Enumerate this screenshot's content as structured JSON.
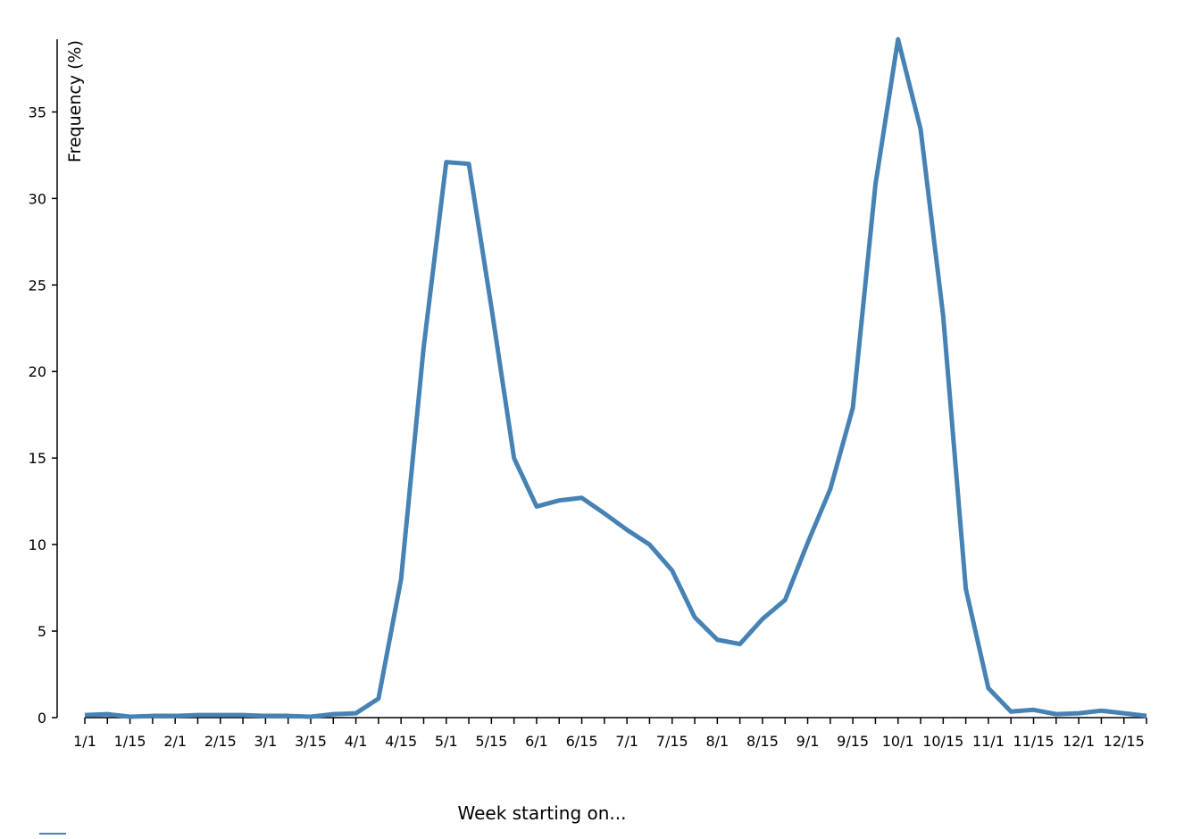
{
  "chart_data": {
    "type": "line",
    "x_label": "Week starting on...",
    "y_label": "Frequency (%)",
    "categories": [
      "1/1",
      null,
      "1/15",
      null,
      "2/1",
      null,
      "2/15",
      null,
      "3/1",
      null,
      "3/15",
      null,
      "4/1",
      null,
      "4/15",
      null,
      "5/1",
      null,
      "5/15",
      null,
      "6/1",
      null,
      "6/15",
      null,
      "7/1",
      null,
      "7/15",
      null,
      "8/1",
      null,
      "8/15",
      null,
      "9/1",
      null,
      "9/15",
      null,
      "10/1",
      null,
      "10/15",
      null,
      "11/1",
      null,
      "11/15",
      null,
      "12/1",
      null,
      "12/15",
      null
    ],
    "values": [
      0.15,
      0.2,
      0.05,
      0.1,
      0.1,
      0.15,
      0.15,
      0.15,
      0.1,
      0.1,
      0.05,
      0.2,
      0.25,
      1.1,
      8.0,
      21.4,
      32.1,
      32.0,
      23.7,
      15.0,
      12.2,
      12.55,
      12.7,
      11.8,
      10.85,
      10.0,
      8.5,
      5.8,
      4.5,
      4.25,
      5.7,
      6.8,
      10.1,
      13.2,
      17.9,
      30.8,
      39.2,
      34.0,
      23.2,
      7.45,
      1.7,
      0.35,
      0.45,
      0.2,
      0.25,
      0.4,
      0.25,
      0.1
    ],
    "color": "#4682b4",
    "ylim": [
      0,
      39.2
    ],
    "yticks": [
      0,
      5,
      10,
      15,
      20,
      25,
      30,
      35
    ]
  }
}
